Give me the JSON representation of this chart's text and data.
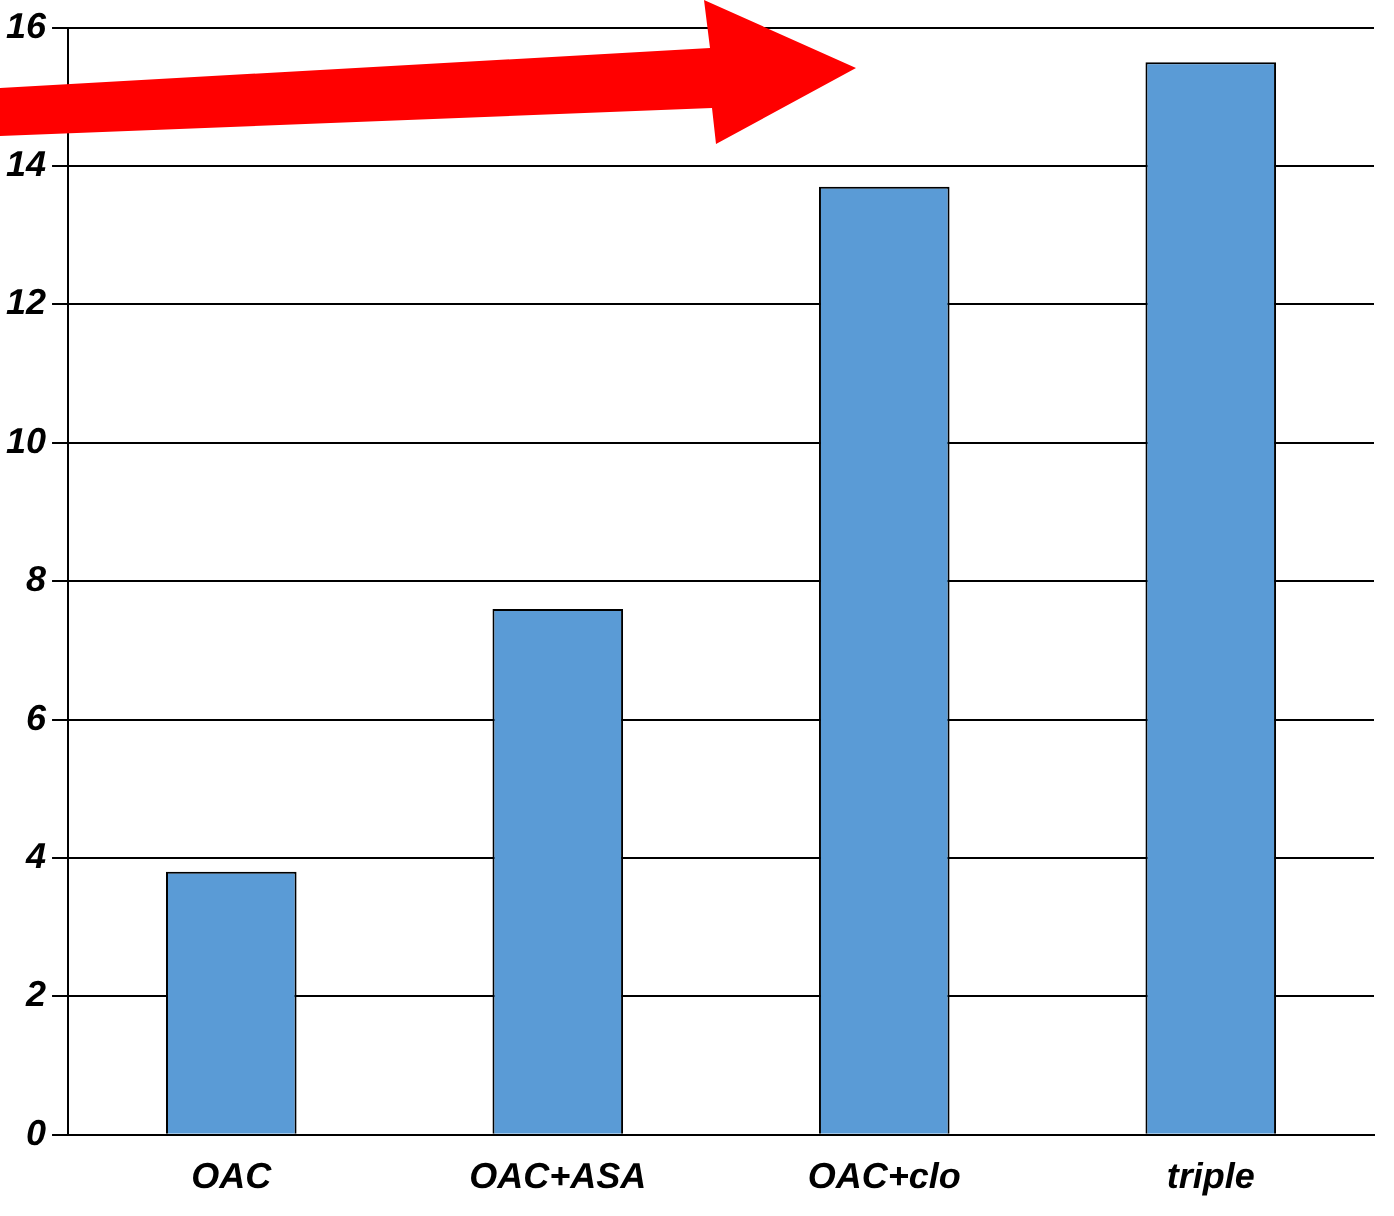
{
  "chart_data": {
    "type": "bar",
    "categories": [
      "OAC",
      "OAC+ASA",
      "OAC+clo",
      "triple"
    ],
    "values": [
      3.8,
      7.6,
      13.7,
      15.5
    ],
    "color": "#5a9bd6",
    "ylim": [
      0,
      16
    ],
    "yticks": [
      0,
      2,
      4,
      6,
      8,
      10,
      12,
      14,
      16
    ],
    "grid": "y",
    "legend": false
  }
}
